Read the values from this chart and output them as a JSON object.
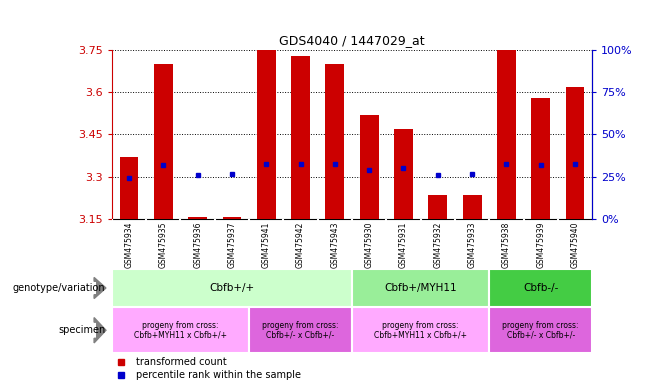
{
  "title": "GDS4040 / 1447029_at",
  "samples": [
    "GSM475934",
    "GSM475935",
    "GSM475936",
    "GSM475937",
    "GSM475941",
    "GSM475942",
    "GSM475943",
    "GSM475930",
    "GSM475931",
    "GSM475932",
    "GSM475933",
    "GSM475938",
    "GSM475939",
    "GSM475940"
  ],
  "bar_values": [
    3.37,
    3.7,
    3.155,
    3.155,
    3.75,
    3.73,
    3.7,
    3.52,
    3.47,
    3.235,
    3.235,
    3.75,
    3.58,
    3.62
  ],
  "dot_values": [
    3.295,
    3.34,
    3.305,
    3.31,
    3.345,
    3.345,
    3.345,
    3.325,
    3.33,
    3.305,
    3.31,
    3.345,
    3.34,
    3.345
  ],
  "ymin": 3.15,
  "ymax": 3.75,
  "yticks": [
    3.15,
    3.3,
    3.45,
    3.6,
    3.75
  ],
  "right_yticks": [
    0,
    25,
    50,
    75,
    100
  ],
  "bar_color": "#cc0000",
  "dot_color": "#0000cc",
  "bar_width": 0.55,
  "geno_groups": [
    {
      "label": "Cbfb+/+",
      "start": 0,
      "end": 7,
      "color": "#ccffcc"
    },
    {
      "label": "Cbfb+/MYH11",
      "start": 7,
      "end": 11,
      "color": "#99ee99"
    },
    {
      "label": "Cbfb-/-",
      "start": 11,
      "end": 14,
      "color": "#44cc44"
    }
  ],
  "spec_groups": [
    {
      "label": "progeny from cross:\nCbfb+MYH11 x Cbfb+/+",
      "start": 0,
      "end": 4,
      "color": "#ffaaff"
    },
    {
      "label": "progeny from cross:\nCbfb+/- x Cbfb+/-",
      "start": 4,
      "end": 7,
      "color": "#dd66dd"
    },
    {
      "label": "progeny from cross:\nCbfb+MYH11 x Cbfb+/+",
      "start": 7,
      "end": 11,
      "color": "#ffaaff"
    },
    {
      "label": "progeny from cross:\nCbfb+/- x Cbfb+/-",
      "start": 11,
      "end": 14,
      "color": "#dd66dd"
    }
  ],
  "left_label_color": "#cc0000",
  "right_label_color": "#0000cc",
  "legend_bar_label": "transformed count",
  "legend_dot_label": "percentile rank within the sample"
}
